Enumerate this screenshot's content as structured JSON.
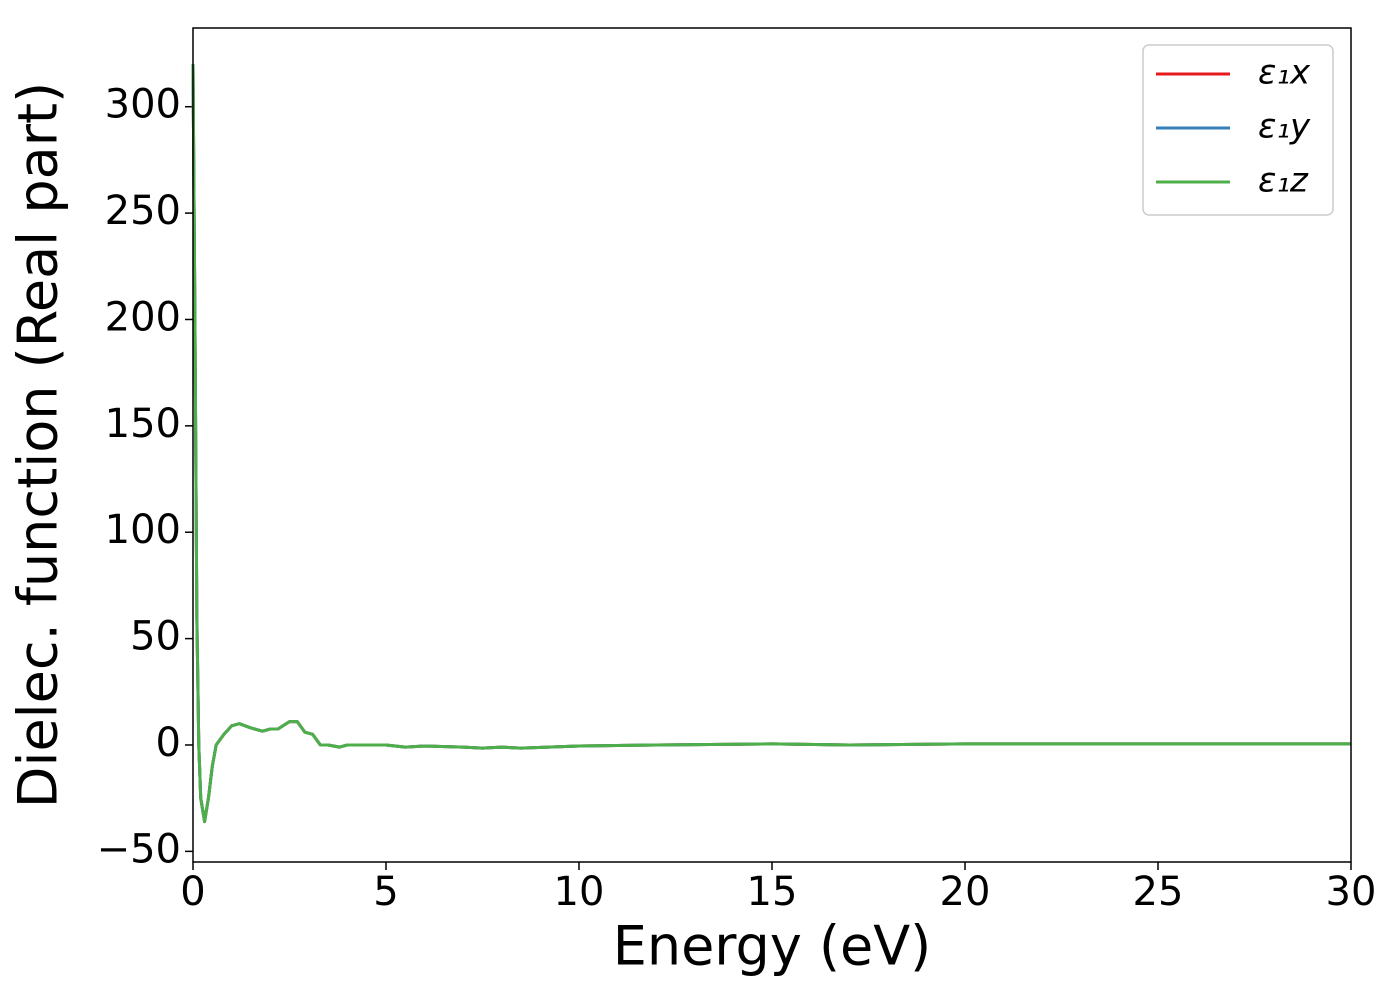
{
  "chart_data": {
    "type": "line",
    "x_label": "Energy (eV)",
    "y_label": "Dielec. function (Real part)",
    "x": [
      0,
      0.05,
      0.1,
      0.15,
      0.2,
      0.3,
      0.4,
      0.5,
      0.6,
      0.8,
      1.0,
      1.2,
      1.5,
      1.8,
      2.0,
      2.2,
      2.5,
      2.7,
      2.9,
      3.1,
      3.3,
      3.5,
      3.8,
      4.0,
      5.0,
      5.5,
      6.0,
      7.0,
      7.5,
      8.0,
      8.5,
      10.0,
      12.0,
      15.0,
      17.0,
      20.0,
      25.0,
      30.0
    ],
    "series": [
      {
        "name": "ε₁x",
        "color": "#e41a1c",
        "values": [
          320,
          200,
          60,
          0,
          -25,
          -36,
          -25,
          -10,
          0,
          5,
          9,
          10,
          8,
          6.5,
          7.5,
          7.5,
          11,
          11,
          6,
          5,
          0,
          0,
          -1,
          0,
          0,
          -1,
          -0.5,
          -1,
          -1.5,
          -1,
          -1.5,
          -0.5,
          0,
          0.5,
          0,
          0.5,
          0.5,
          0.5
        ]
      },
      {
        "name": "ε₁y",
        "color": "#377eb8",
        "values": [
          320,
          200,
          60,
          0,
          -25,
          -36,
          -25,
          -10,
          0,
          5,
          9,
          10,
          8,
          6.5,
          7.5,
          7.5,
          11,
          11,
          6,
          5,
          0,
          0,
          -1,
          0,
          0,
          -1,
          -0.5,
          -1,
          -1.5,
          -1,
          -1.5,
          -0.5,
          0,
          0.5,
          0,
          0.5,
          0.5,
          0.5
        ]
      },
      {
        "name": "ε₁z",
        "color": "#4daf4a",
        "values": [
          320,
          200,
          60,
          0,
          -25,
          -36,
          -25,
          -10,
          0,
          5,
          9,
          10,
          8,
          6.5,
          7.5,
          7.5,
          11,
          11,
          6,
          5,
          0,
          0,
          -1,
          0,
          0,
          -1,
          -0.5,
          -1,
          -1.5,
          -1,
          -1.5,
          -0.5,
          0,
          0.5,
          0,
          0.5,
          0.5,
          0.5
        ]
      }
    ],
    "xlim": [
      0,
      30
    ],
    "ylim": [
      -55,
      337
    ],
    "xticks": [
      0,
      5,
      10,
      15,
      20,
      25,
      30
    ],
    "yticks": [
      {
        "value": -50,
        "label": "−50"
      },
      0,
      50,
      100,
      150,
      200,
      250,
      300
    ],
    "legend": "upper right",
    "grid": false
  }
}
